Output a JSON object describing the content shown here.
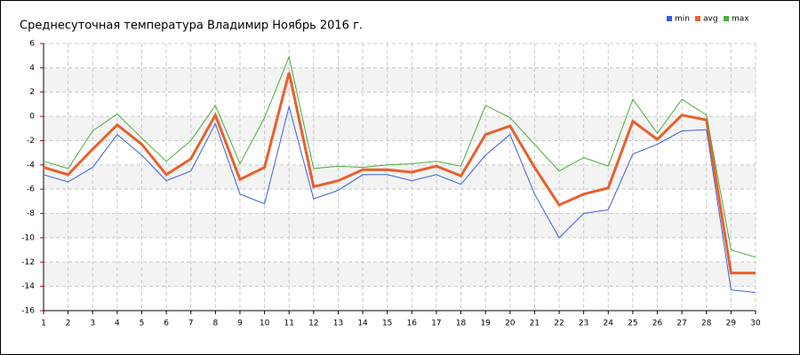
{
  "chart_data": {
    "type": "line",
    "title": "Среднесуточная температура Владимир  Ноябрь 2016 г.",
    "x": [
      1,
      2,
      3,
      4,
      5,
      6,
      7,
      8,
      9,
      10,
      11,
      12,
      13,
      14,
      15,
      16,
      17,
      18,
      19,
      20,
      21,
      22,
      23,
      24,
      25,
      26,
      27,
      28,
      29,
      30
    ],
    "xlim": [
      1,
      30
    ],
    "xticks": [
      1,
      2,
      3,
      4,
      5,
      6,
      7,
      8,
      9,
      10,
      11,
      12,
      13,
      14,
      15,
      16,
      17,
      18,
      19,
      20,
      21,
      22,
      23,
      24,
      25,
      26,
      27,
      28,
      29,
      30
    ],
    "ylim": [
      -16,
      6
    ],
    "yticks": [
      -16,
      -14,
      -12,
      -10,
      -8,
      -6,
      -4,
      -2,
      0,
      2,
      4,
      6
    ],
    "grid": true,
    "legend": "top-right",
    "series": [
      {
        "name": "min",
        "color": "#3b5fd9",
        "width": 1,
        "values": [
          -4.8,
          -5.4,
          -4.2,
          -1.5,
          -3.2,
          -5.3,
          -4.5,
          -0.6,
          -6.4,
          -7.2,
          0.8,
          -6.8,
          -6.1,
          -4.8,
          -4.8,
          -5.3,
          -4.8,
          -5.6,
          -3.2,
          -1.5,
          -6.4,
          -10.0,
          -8.0,
          -7.7,
          -3.1,
          -2.3,
          -1.2,
          -1.1,
          -14.3,
          -14.5
        ]
      },
      {
        "name": "avg",
        "color": "#e8602c",
        "width": 3,
        "values": [
          -4.2,
          -4.8,
          -2.7,
          -0.7,
          -2.3,
          -4.8,
          -3.5,
          0.1,
          -5.2,
          -4.2,
          3.6,
          -5.8,
          -5.3,
          -4.4,
          -4.4,
          -4.6,
          -4.1,
          -4.9,
          -1.5,
          -0.8,
          -4.2,
          -7.3,
          -6.4,
          -5.9,
          -0.4,
          -1.9,
          0.1,
          -0.3,
          -12.9,
          -12.9
        ]
      },
      {
        "name": "max",
        "color": "#4caf3a",
        "width": 1,
        "values": [
          -3.7,
          -4.3,
          -1.2,
          0.2,
          -1.8,
          -3.7,
          -2.0,
          0.9,
          -3.9,
          -0.1,
          4.9,
          -4.3,
          -4.1,
          -4.2,
          -4.0,
          -3.9,
          -3.7,
          -4.1,
          0.9,
          -0.1,
          -2.3,
          -4.5,
          -3.4,
          -4.1,
          1.4,
          -1.4,
          1.4,
          0.1,
          -11.0,
          -11.6
        ]
      }
    ]
  }
}
